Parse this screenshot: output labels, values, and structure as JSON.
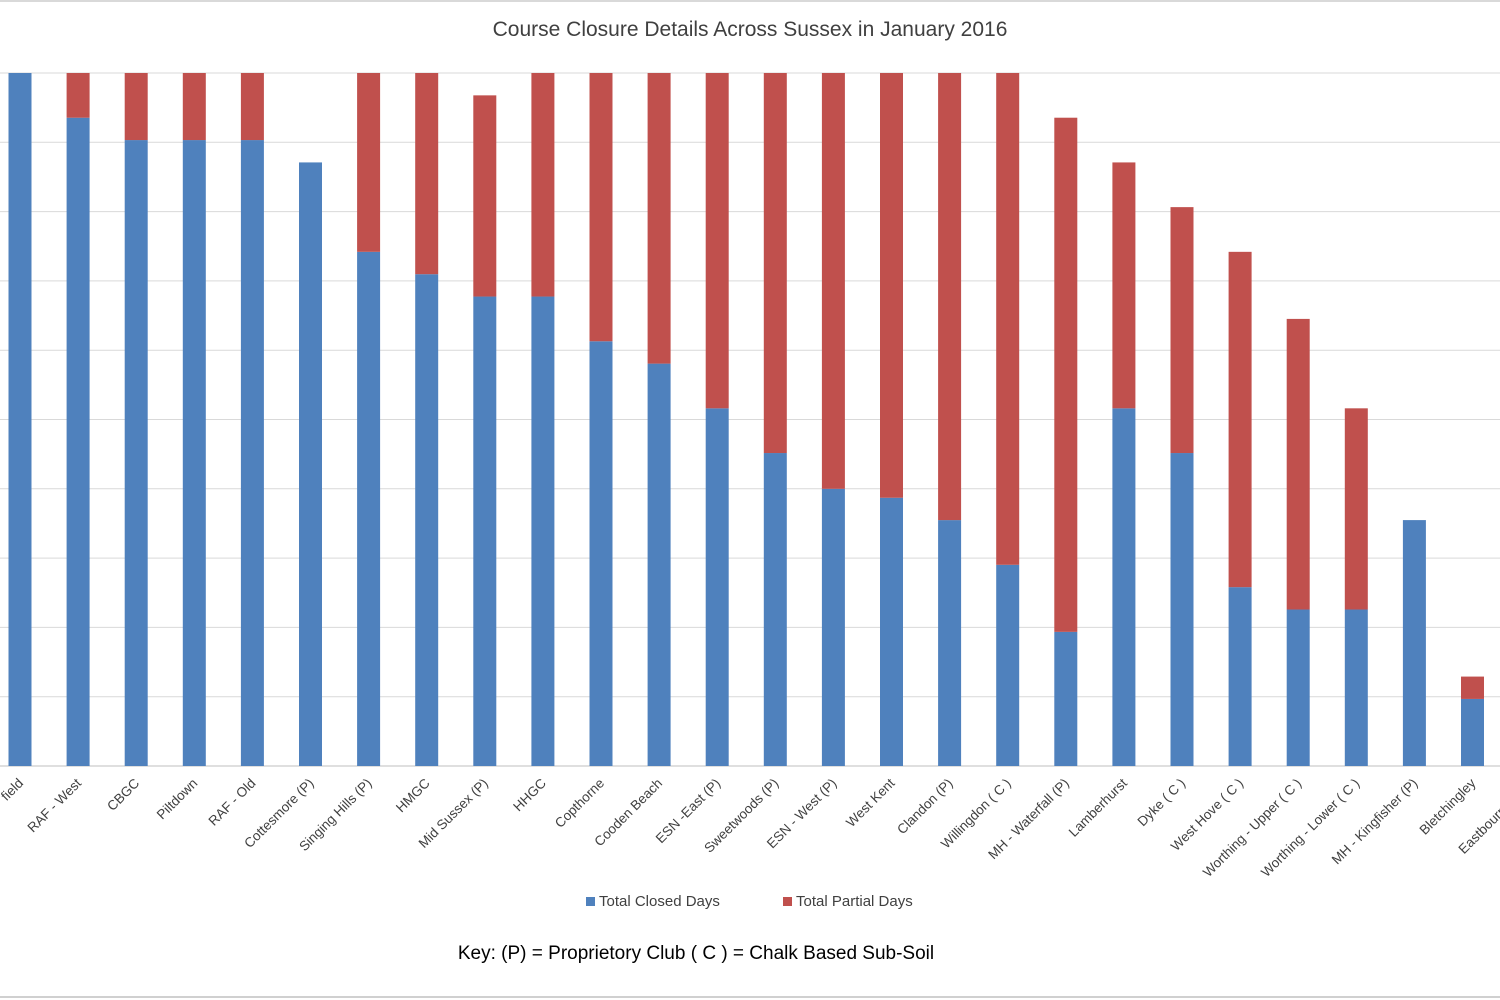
{
  "chart_data": {
    "type": "bar",
    "stacked": true,
    "title": "Course Closure Details Across Sussex in January 2016",
    "categories": [
      "Haywards Heath field",
      "RAF - West",
      "CBGC",
      "Piltdown",
      "RAF - Old",
      "Cottesmore (P)",
      "Singing Hills (P)",
      "HMGC",
      "Mid Sussex (P)",
      "HHGC",
      "Copthorne",
      "Cooden Beach",
      "ESN -East (P)",
      "Sweetwoods (P)",
      "ESN - West (P)",
      "West Kent",
      "Clandon (P)",
      "Willingdon ( C )",
      "MH - Waterfall (P)",
      "Lamberhurst",
      "Dyke ( C )",
      "West Hove ( C )",
      "Worthing - Upper ( C )",
      "Worthing - Lower ( C )",
      "MH - Kingfisher (P)",
      "Bletchingley",
      "Eastbourne Downs"
    ],
    "visible_tick_labels": [
      "field",
      "RAF - West",
      "CBGC",
      "Piltdown",
      "RAF - Old",
      "Cottesmore (P)",
      "Singing Hills (P)",
      "HMGC",
      "Mid Sussex (P)",
      "HHGC",
      "Copthorne",
      "Cooden Beach",
      "ESN -East (P)",
      "Sweetwoods (P)",
      "ESN - West (P)",
      "West Kent",
      "Clandon (P)",
      "Willingdon ( C )",
      "MH - Waterfall (P)",
      "Lamberhurst",
      "Dyke ( C )",
      "West Hove ( C )",
      "Worthing - Upper ( C )",
      "Worthing - Lower ( C )",
      "MH - Kingfisher (P)",
      "Bletchingley",
      "Eastbourne Dow"
    ],
    "series": [
      {
        "name": "Total Closed Days",
        "color": "#4f81bd",
        "values": [
          31,
          29,
          28,
          28,
          28,
          27,
          23,
          22,
          21,
          21,
          19,
          18,
          16,
          14,
          12.4,
          12,
          11,
          9,
          6,
          16,
          14,
          8,
          7,
          7,
          11,
          3,
          0
        ]
      },
      {
        "name": "Total Partial Days",
        "color": "#c0504d",
        "values": [
          0,
          2,
          3,
          3,
          3,
          0,
          8,
          9,
          9,
          10,
          12,
          13,
          15,
          17,
          18.6,
          19,
          20,
          22,
          23,
          11,
          11,
          15,
          13,
          9,
          0,
          1,
          0
        ]
      }
    ],
    "ylim": [
      0,
      31
    ],
    "grid": true,
    "legend": "bottom"
  },
  "key_text": "Key: (P) = Proprietory Club ( C ) = Chalk Based Sub-Soil"
}
